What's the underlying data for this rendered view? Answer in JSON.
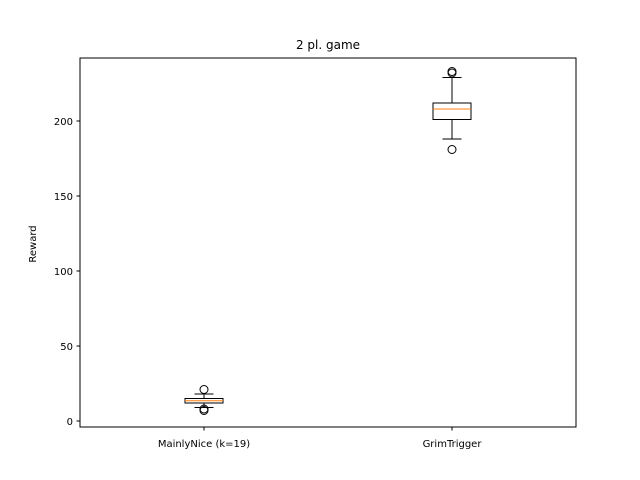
{
  "chart_data": {
    "type": "boxplot",
    "title": "2 pl. game",
    "xlabel": "",
    "ylabel": "Reward",
    "ylim": [
      -4,
      242
    ],
    "yticks": [
      0,
      50,
      100,
      150,
      200
    ],
    "grid": false,
    "median_color": "#ff7f0e",
    "box_color": "#000000",
    "boxes": [
      {
        "label": "MainlyNice (k=19)",
        "whisker_low": 9,
        "q1": 12,
        "median": 13.5,
        "q3": 15,
        "whisker_high": 18,
        "outliers": [
          7,
          8,
          21
        ]
      },
      {
        "label": "GrimTrigger",
        "whisker_low": 188,
        "q1": 201,
        "median": 208,
        "q3": 212,
        "whisker_high": 229,
        "outliers": [
          181,
          232,
          233
        ]
      }
    ]
  }
}
